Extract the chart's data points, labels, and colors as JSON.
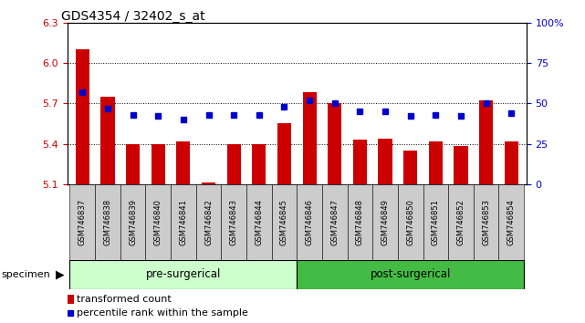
{
  "title": "GDS4354 / 32402_s_at",
  "samples": [
    "GSM746837",
    "GSM746838",
    "GSM746839",
    "GSM746840",
    "GSM746841",
    "GSM746842",
    "GSM746843",
    "GSM746844",
    "GSM746845",
    "GSM746846",
    "GSM746847",
    "GSM746848",
    "GSM746849",
    "GSM746850",
    "GSM746851",
    "GSM746852",
    "GSM746853",
    "GSM746854"
  ],
  "bar_values": [
    6.1,
    5.75,
    5.4,
    5.4,
    5.42,
    5.11,
    5.4,
    5.4,
    5.55,
    5.78,
    5.7,
    5.43,
    5.44,
    5.35,
    5.42,
    5.38,
    5.72,
    5.42
  ],
  "percentile_values": [
    57,
    47,
    43,
    42,
    40,
    43,
    43,
    43,
    48,
    52,
    50,
    45,
    45,
    42,
    43,
    42,
    50,
    44
  ],
  "bar_color": "#cc0000",
  "percentile_color": "#0000cc",
  "ylim_left": [
    5.1,
    6.3
  ],
  "ylim_right": [
    0,
    100
  ],
  "yticks_left": [
    5.1,
    5.4,
    5.7,
    6.0,
    6.3
  ],
  "yticks_right": [
    0,
    25,
    50,
    75,
    100
  ],
  "grid_values": [
    6.0,
    5.7,
    5.4
  ],
  "background_group_pre": "#ccffcc",
  "background_group_post": "#44bb44",
  "group_labels": [
    "pre-surgerical",
    "post-surgerical"
  ],
  "n_pre": 9,
  "n_post": 9,
  "specimen_label": "specimen",
  "legend_bar_label": "transformed count",
  "legend_pct_label": "percentile rank within the sample"
}
